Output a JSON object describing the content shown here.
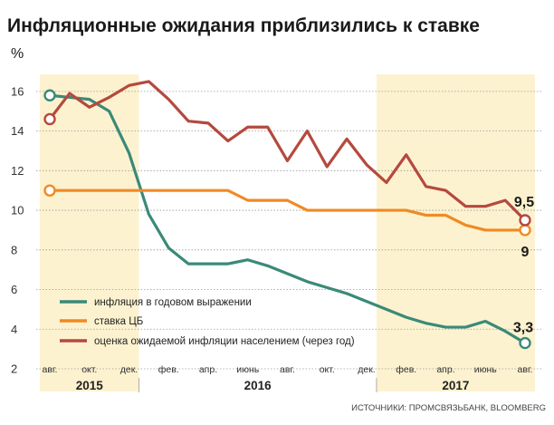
{
  "title": "Инфляционные ожидания приблизились к ставке",
  "unit": "%",
  "source": "ИСТОЧНИКИ: ПРОМСВЯЗЬБАНК, BLOOMBERG",
  "colors": {
    "highlight": "#fdf2cf",
    "grid": "#9a9a9a"
  },
  "chart_data": {
    "type": "line",
    "x": [
      "2015-08",
      "2015-09",
      "2015-10",
      "2015-11",
      "2015-12",
      "2016-01",
      "2016-02",
      "2016-03",
      "2016-04",
      "2016-05",
      "2016-06",
      "2016-07",
      "2016-08",
      "2016-09",
      "2016-10",
      "2016-11",
      "2016-12",
      "2017-01",
      "2017-02",
      "2017-03",
      "2017-04",
      "2017-05",
      "2017-06",
      "2017-07",
      "2017-08"
    ],
    "x_tick_labels": [
      "авг.",
      "окт.",
      "дек.",
      "фев.",
      "апр.",
      "июнь",
      "авг.",
      "окт.",
      "дек.",
      "фев.",
      "апр.",
      "июнь",
      "авг."
    ],
    "x_tick_months": [
      "2015-08",
      "2015-10",
      "2015-12",
      "2016-02",
      "2016-04",
      "2016-06",
      "2016-08",
      "2016-10",
      "2016-12",
      "2017-02",
      "2017-04",
      "2017-06",
      "2017-08"
    ],
    "year_labels": [
      {
        "label": "2015",
        "from": "2015-08",
        "to": "2015-12"
      },
      {
        "label": "2016",
        "from": "2016-01",
        "to": "2016-12"
      },
      {
        "label": "2017",
        "from": "2017-01",
        "to": "2017-08"
      }
    ],
    "highlight_ranges": [
      {
        "from": "2015-08",
        "to": "2015-12"
      },
      {
        "from": "2017-01",
        "to": "2017-08"
      }
    ],
    "ylim": [
      2,
      17
    ],
    "y_ticks": [
      2,
      4,
      6,
      8,
      10,
      12,
      14,
      16
    ],
    "grid": "horizontal",
    "series": [
      {
        "name": "инфляция в годовом выражении",
        "color": "#3a8a78",
        "values": [
          15.8,
          15.7,
          15.6,
          15.0,
          12.9,
          9.8,
          8.1,
          7.3,
          7.3,
          7.3,
          7.5,
          7.2,
          6.8,
          6.4,
          6.1,
          5.8,
          5.4,
          5.0,
          4.6,
          4.3,
          4.1,
          4.1,
          4.4,
          3.9,
          3.3
        ],
        "end_label": "3,3"
      },
      {
        "name": "ставка ЦБ",
        "color": "#f08a24",
        "values": [
          11.0,
          11.0,
          11.0,
          11.0,
          11.0,
          11.0,
          11.0,
          11.0,
          11.0,
          11.0,
          10.5,
          10.5,
          10.5,
          10.0,
          10.0,
          10.0,
          10.0,
          10.0,
          10.0,
          9.75,
          9.75,
          9.25,
          9.0,
          9.0,
          9.0
        ],
        "end_label": "9"
      },
      {
        "name": "оценка ожидаемой инфляции населением (через год)",
        "color": "#b5493e",
        "values": [
          14.6,
          15.9,
          15.2,
          15.7,
          16.3,
          16.5,
          15.6,
          14.5,
          14.4,
          13.5,
          14.2,
          14.2,
          12.5,
          14.0,
          12.2,
          13.6,
          12.3,
          11.4,
          12.8,
          11.2,
          11.0,
          10.2,
          10.2,
          10.5,
          9.5
        ],
        "end_label": "9,5"
      }
    ],
    "legend_position": "bottom-left"
  }
}
